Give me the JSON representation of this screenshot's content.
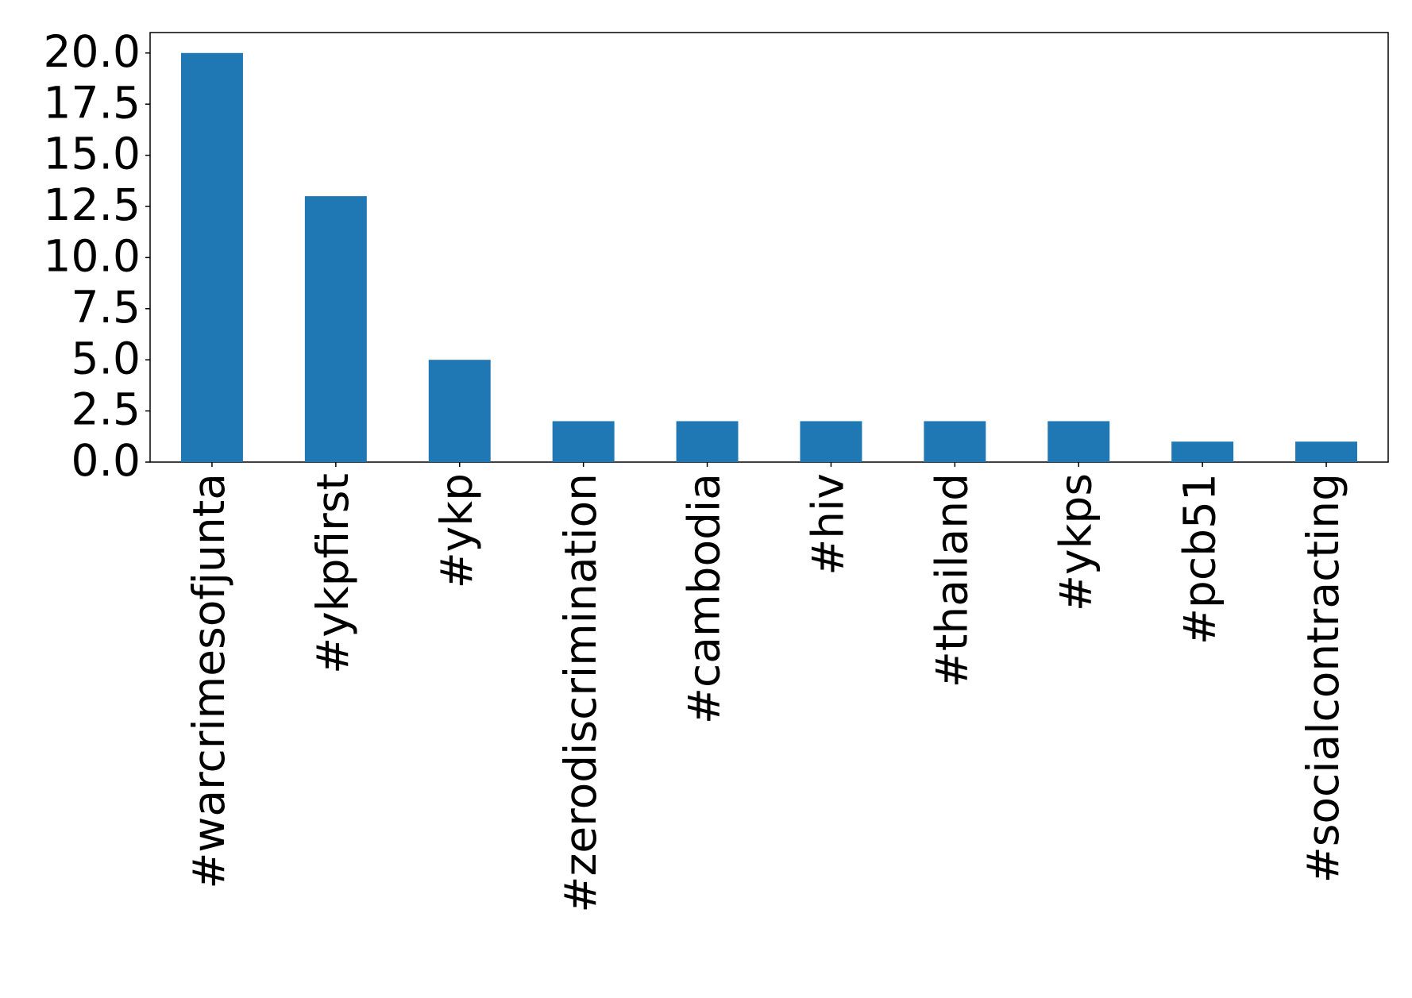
{
  "chart_data": {
    "type": "bar",
    "categories": [
      "#warcrimesofjunta",
      "#ykpfirst",
      "#ykp",
      "#zerodiscrimination",
      "#cambodia",
      "#hiv",
      "#thailand",
      "#ykps",
      "#pcb51",
      "#socialcontracting"
    ],
    "values": [
      20,
      13,
      5,
      2,
      2,
      2,
      2,
      2,
      1,
      1
    ],
    "color": "#1f77b4",
    "ylim": [
      0,
      21
    ],
    "yticks": [
      {
        "value": 0,
        "label": "0.0"
      },
      {
        "value": 2.5,
        "label": "2.5"
      },
      {
        "value": 5,
        "label": "5.0"
      },
      {
        "value": 7.5,
        "label": "7.5"
      },
      {
        "value": 10,
        "label": "10.0"
      },
      {
        "value": 12.5,
        "label": "12.5"
      },
      {
        "value": 15,
        "label": "15.0"
      },
      {
        "value": 17.5,
        "label": "17.5"
      },
      {
        "value": 20,
        "label": "20.0"
      }
    ],
    "grid": false
  }
}
